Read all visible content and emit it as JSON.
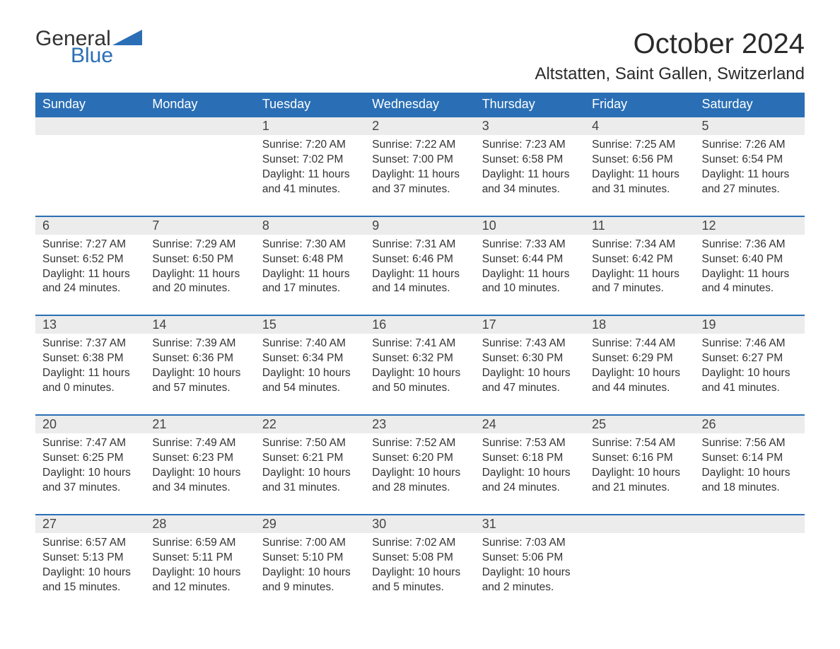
{
  "brand": {
    "word1": "General",
    "word2": "Blue",
    "logo_color": "#2a6fb5"
  },
  "title": "October 2024",
  "location": "Altstatten, Saint Gallen, Switzerland",
  "colors": {
    "header_bg": "#2a6fb5",
    "header_text": "#ffffff",
    "daynum_bg": "#ececec",
    "row_border": "#2a6fb5",
    "body_text": "#333333"
  },
  "day_headers": [
    "Sunday",
    "Monday",
    "Tuesday",
    "Wednesday",
    "Thursday",
    "Friday",
    "Saturday"
  ],
  "weeks": [
    [
      null,
      null,
      {
        "n": "1",
        "sr": "7:20 AM",
        "ss": "7:02 PM",
        "dl": "11 hours and 41 minutes."
      },
      {
        "n": "2",
        "sr": "7:22 AM",
        "ss": "7:00 PM",
        "dl": "11 hours and 37 minutes."
      },
      {
        "n": "3",
        "sr": "7:23 AM",
        "ss": "6:58 PM",
        "dl": "11 hours and 34 minutes."
      },
      {
        "n": "4",
        "sr": "7:25 AM",
        "ss": "6:56 PM",
        "dl": "11 hours and 31 minutes."
      },
      {
        "n": "5",
        "sr": "7:26 AM",
        "ss": "6:54 PM",
        "dl": "11 hours and 27 minutes."
      }
    ],
    [
      {
        "n": "6",
        "sr": "7:27 AM",
        "ss": "6:52 PM",
        "dl": "11 hours and 24 minutes."
      },
      {
        "n": "7",
        "sr": "7:29 AM",
        "ss": "6:50 PM",
        "dl": "11 hours and 20 minutes."
      },
      {
        "n": "8",
        "sr": "7:30 AM",
        "ss": "6:48 PM",
        "dl": "11 hours and 17 minutes."
      },
      {
        "n": "9",
        "sr": "7:31 AM",
        "ss": "6:46 PM",
        "dl": "11 hours and 14 minutes."
      },
      {
        "n": "10",
        "sr": "7:33 AM",
        "ss": "6:44 PM",
        "dl": "11 hours and 10 minutes."
      },
      {
        "n": "11",
        "sr": "7:34 AM",
        "ss": "6:42 PM",
        "dl": "11 hours and 7 minutes."
      },
      {
        "n": "12",
        "sr": "7:36 AM",
        "ss": "6:40 PM",
        "dl": "11 hours and 4 minutes."
      }
    ],
    [
      {
        "n": "13",
        "sr": "7:37 AM",
        "ss": "6:38 PM",
        "dl": "11 hours and 0 minutes."
      },
      {
        "n": "14",
        "sr": "7:39 AM",
        "ss": "6:36 PM",
        "dl": "10 hours and 57 minutes."
      },
      {
        "n": "15",
        "sr": "7:40 AM",
        "ss": "6:34 PM",
        "dl": "10 hours and 54 minutes."
      },
      {
        "n": "16",
        "sr": "7:41 AM",
        "ss": "6:32 PM",
        "dl": "10 hours and 50 minutes."
      },
      {
        "n": "17",
        "sr": "7:43 AM",
        "ss": "6:30 PM",
        "dl": "10 hours and 47 minutes."
      },
      {
        "n": "18",
        "sr": "7:44 AM",
        "ss": "6:29 PM",
        "dl": "10 hours and 44 minutes."
      },
      {
        "n": "19",
        "sr": "7:46 AM",
        "ss": "6:27 PM",
        "dl": "10 hours and 41 minutes."
      }
    ],
    [
      {
        "n": "20",
        "sr": "7:47 AM",
        "ss": "6:25 PM",
        "dl": "10 hours and 37 minutes."
      },
      {
        "n": "21",
        "sr": "7:49 AM",
        "ss": "6:23 PM",
        "dl": "10 hours and 34 minutes."
      },
      {
        "n": "22",
        "sr": "7:50 AM",
        "ss": "6:21 PM",
        "dl": "10 hours and 31 minutes."
      },
      {
        "n": "23",
        "sr": "7:52 AM",
        "ss": "6:20 PM",
        "dl": "10 hours and 28 minutes."
      },
      {
        "n": "24",
        "sr": "7:53 AM",
        "ss": "6:18 PM",
        "dl": "10 hours and 24 minutes."
      },
      {
        "n": "25",
        "sr": "7:54 AM",
        "ss": "6:16 PM",
        "dl": "10 hours and 21 minutes."
      },
      {
        "n": "26",
        "sr": "7:56 AM",
        "ss": "6:14 PM",
        "dl": "10 hours and 18 minutes."
      }
    ],
    [
      {
        "n": "27",
        "sr": "6:57 AM",
        "ss": "5:13 PM",
        "dl": "10 hours and 15 minutes."
      },
      {
        "n": "28",
        "sr": "6:59 AM",
        "ss": "5:11 PM",
        "dl": "10 hours and 12 minutes."
      },
      {
        "n": "29",
        "sr": "7:00 AM",
        "ss": "5:10 PM",
        "dl": "10 hours and 9 minutes."
      },
      {
        "n": "30",
        "sr": "7:02 AM",
        "ss": "5:08 PM",
        "dl": "10 hours and 5 minutes."
      },
      {
        "n": "31",
        "sr": "7:03 AM",
        "ss": "5:06 PM",
        "dl": "10 hours and 2 minutes."
      },
      null,
      null
    ]
  ],
  "labels": {
    "sunrise": "Sunrise: ",
    "sunset": "Sunset: ",
    "daylight": "Daylight: "
  }
}
